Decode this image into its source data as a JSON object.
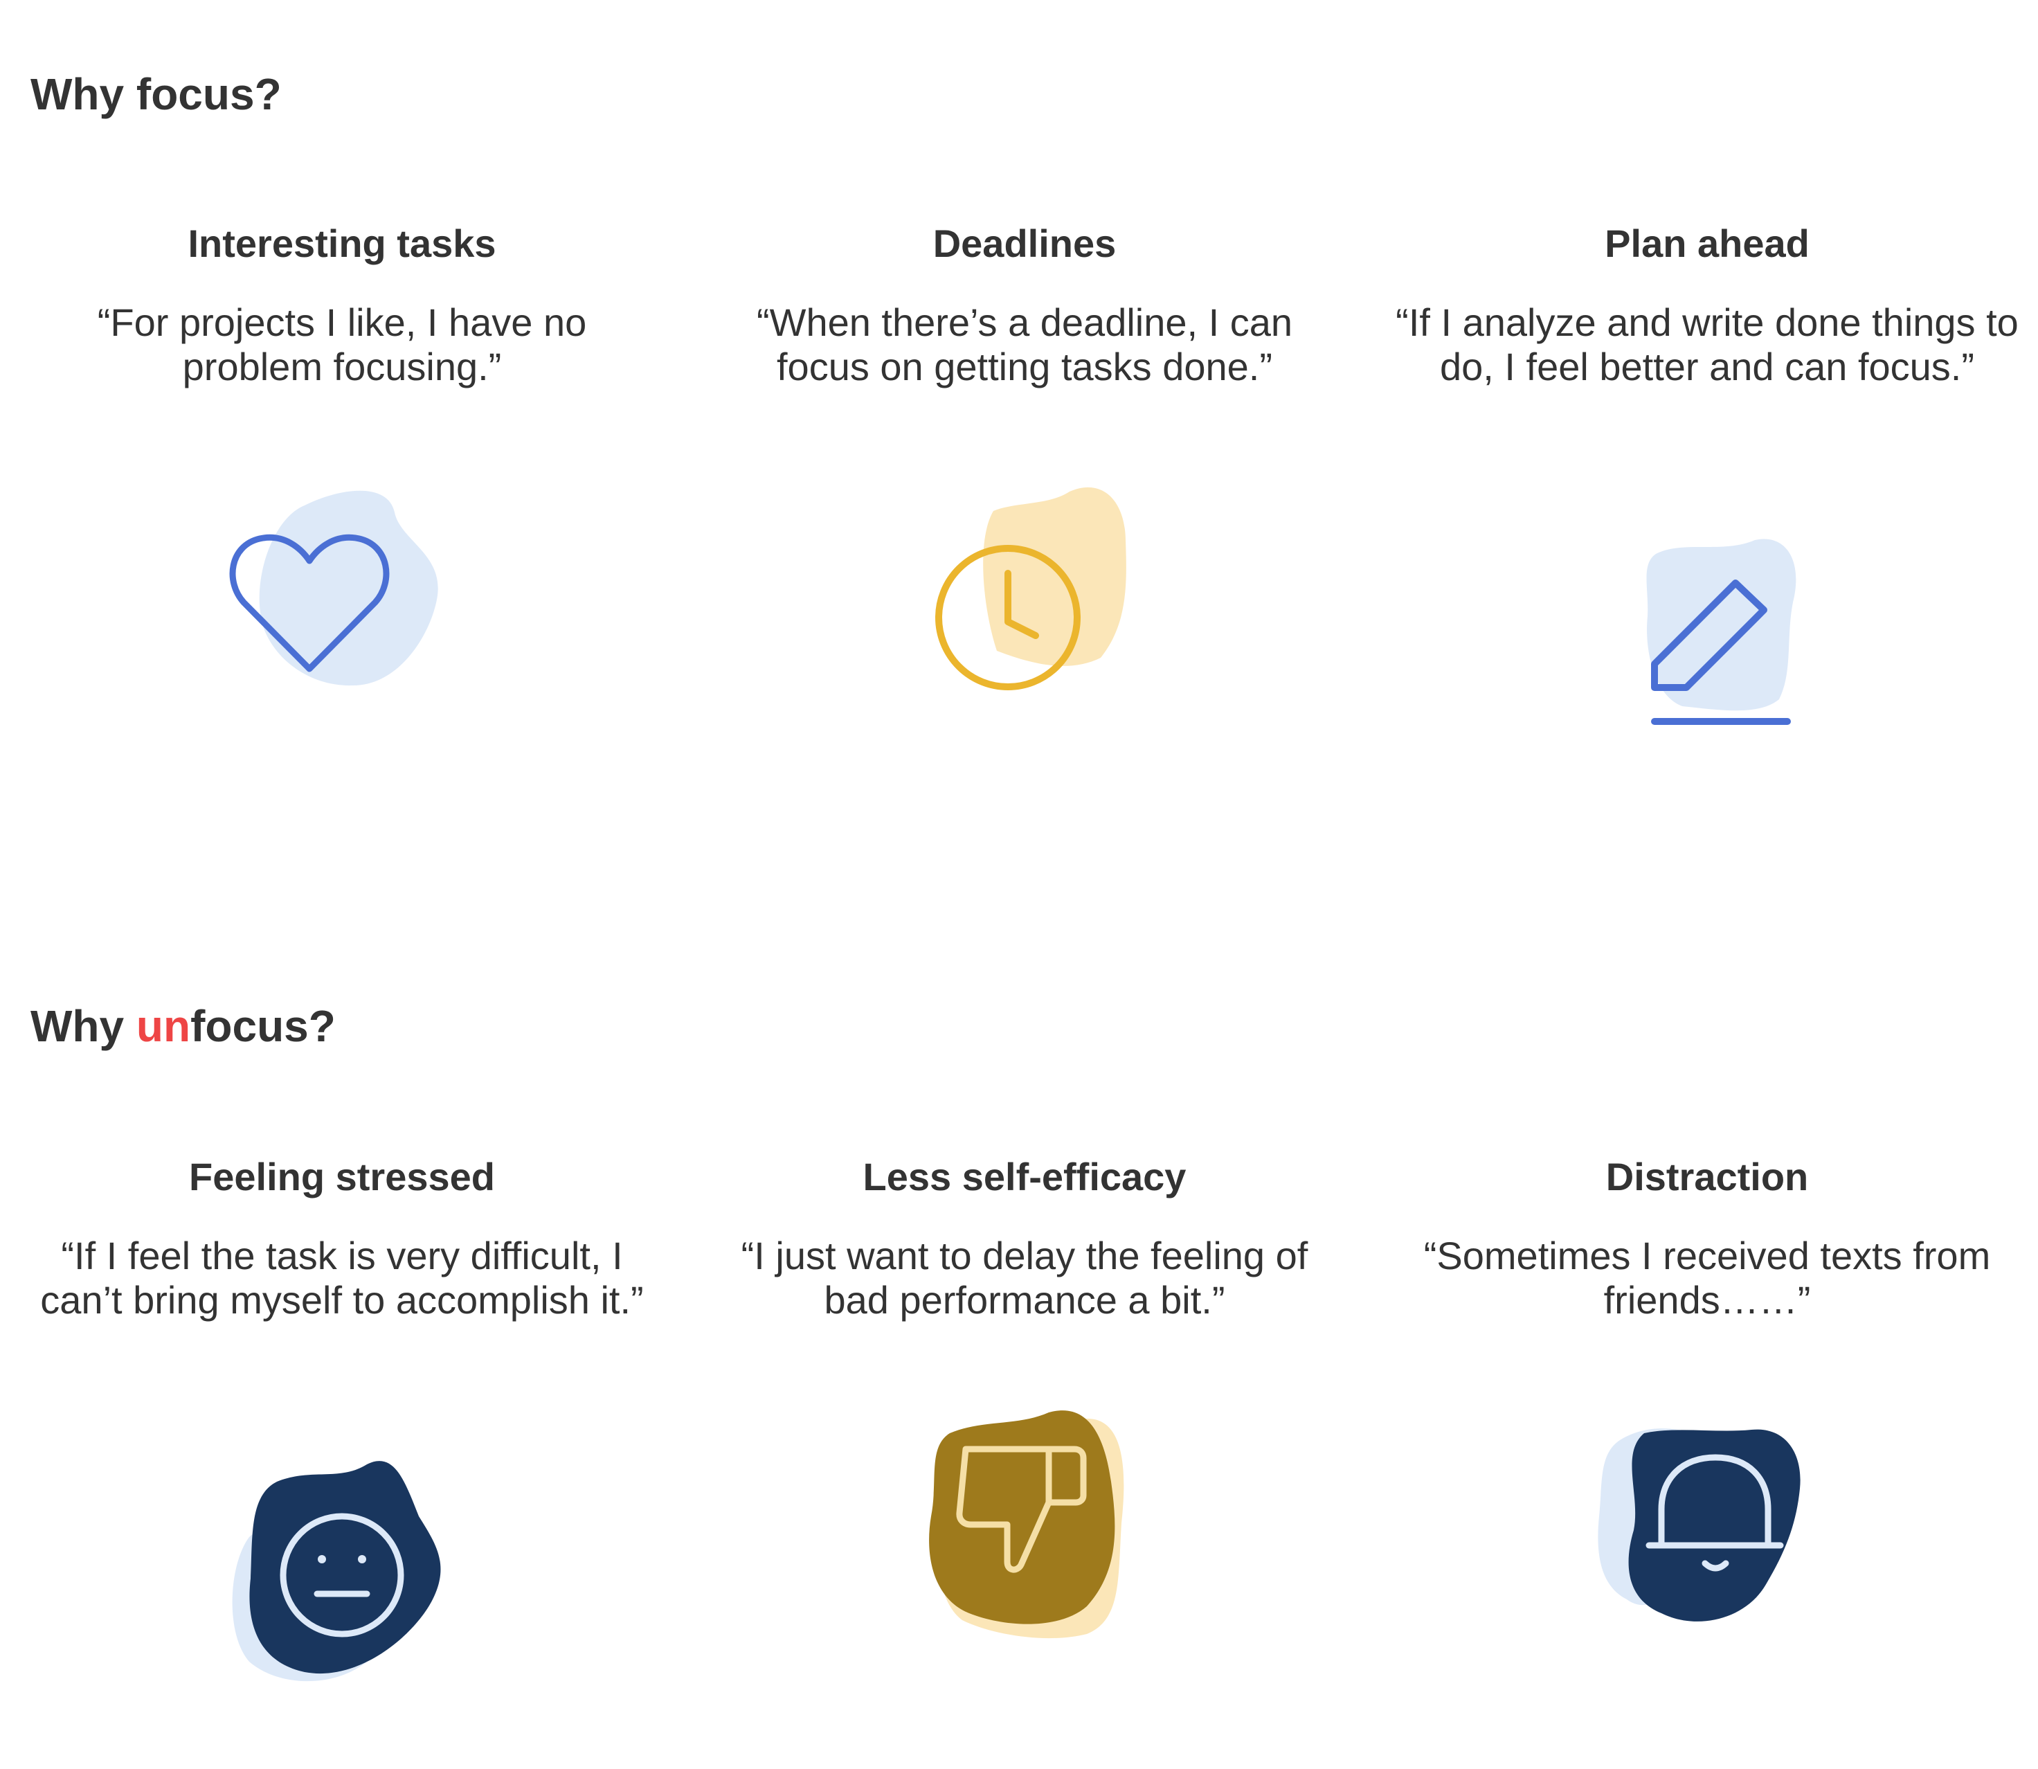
{
  "focus_section": {
    "title_prefix": "Why focus?",
    "cards": [
      {
        "title": "Interesting tasks",
        "quote": "“For projects I like, I have no problem focusing.”",
        "icon": "heart-icon"
      },
      {
        "title": "Deadlines",
        "quote": "“When there’s a deadline, I can focus on getting tasks done.”",
        "icon": "clock-icon"
      },
      {
        "title": "Plan ahead",
        "quote": "“If I analyze and write done things to do, I feel better and can focus.”",
        "icon": "pencil-icon"
      }
    ]
  },
  "unfocus_section": {
    "title_prefix": "Why ",
    "title_highlight": "un",
    "title_suffix": "focus?",
    "cards": [
      {
        "title": "Feeling stressed",
        "quote": "“If I feel the task is very difficult, I can’t bring myself to accomplish it.”",
        "icon": "neutral-face-icon"
      },
      {
        "title": "Less self-efficacy",
        "quote": "“I just want to delay the feeling of bad performance a bit.”",
        "icon": "thumbs-down-icon"
      },
      {
        "title": "Distraction",
        "quote": "“Sometimes I received texts from friends……”",
        "icon": "bell-icon"
      }
    ]
  },
  "colors": {
    "text": "#333333",
    "highlight": "#ee4545",
    "light_blue_blob": "#dde9f8",
    "blue_stroke": "#4a6fd4",
    "light_yellow_blob": "#fbe6b8",
    "yellow_stroke": "#ebb52d",
    "navy_blob": "#19365e",
    "mustard_blob": "#9e7a1c",
    "cream_stroke": "#f5dfa6",
    "pale_blue_stroke": "#dde9f8"
  }
}
